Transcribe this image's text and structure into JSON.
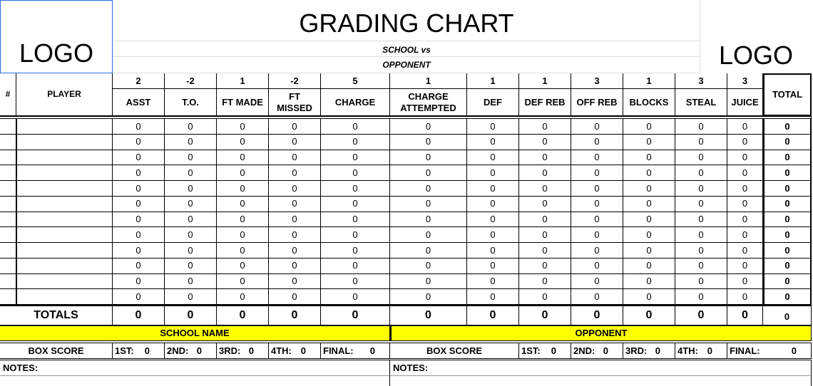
{
  "header": {
    "logo_left": "LOGO",
    "title": "GRADING CHART",
    "subtitle": [
      "SCHOOL vs",
      "OPPONENT"
    ],
    "logo_right": "LOGO"
  },
  "table": {
    "columns": {
      "number": "#",
      "player": "PLAYER",
      "total": "TOTAL",
      "stats": [
        {
          "weight": 2,
          "name": "ASST"
        },
        {
          "weight": -2,
          "name": "T.O."
        },
        {
          "weight": 1,
          "name": "FT MADE"
        },
        {
          "weight": -2,
          "name": "FT MISSED"
        },
        {
          "weight": 5,
          "name": "CHARGE"
        },
        {
          "weight": 1,
          "name": "CHARGE ATTEMPTED"
        },
        {
          "weight": 1,
          "name": "DEF"
        },
        {
          "weight": 1,
          "name": "DEF REB"
        },
        {
          "weight": 3,
          "name": "OFF REB"
        },
        {
          "weight": 1,
          "name": "BLOCKS"
        },
        {
          "weight": 3,
          "name": "STEAL"
        },
        {
          "weight": 3,
          "name": "JUICE"
        }
      ]
    },
    "rows": [
      {
        "stats": [
          0,
          0,
          0,
          0,
          0,
          0,
          0,
          0,
          0,
          0,
          0,
          0
        ],
        "total": 0
      },
      {
        "stats": [
          0,
          0,
          0,
          0,
          0,
          0,
          0,
          0,
          0,
          0,
          0,
          0
        ],
        "total": 0
      },
      {
        "stats": [
          0,
          0,
          0,
          0,
          0,
          0,
          0,
          0,
          0,
          0,
          0,
          0
        ],
        "total": 0
      },
      {
        "stats": [
          0,
          0,
          0,
          0,
          0,
          0,
          0,
          0,
          0,
          0,
          0,
          0
        ],
        "total": 0
      },
      {
        "stats": [
          0,
          0,
          0,
          0,
          0,
          0,
          0,
          0,
          0,
          0,
          0,
          0
        ],
        "total": 0
      },
      {
        "stats": [
          0,
          0,
          0,
          0,
          0,
          0,
          0,
          0,
          0,
          0,
          0,
          0
        ],
        "total": 0
      },
      {
        "stats": [
          0,
          0,
          0,
          0,
          0,
          0,
          0,
          0,
          0,
          0,
          0,
          0
        ],
        "total": 0
      },
      {
        "stats": [
          0,
          0,
          0,
          0,
          0,
          0,
          0,
          0,
          0,
          0,
          0,
          0
        ],
        "total": 0
      },
      {
        "stats": [
          0,
          0,
          0,
          0,
          0,
          0,
          0,
          0,
          0,
          0,
          0,
          0
        ],
        "total": 0
      },
      {
        "stats": [
          0,
          0,
          0,
          0,
          0,
          0,
          0,
          0,
          0,
          0,
          0,
          0
        ],
        "total": 0
      },
      {
        "stats": [
          0,
          0,
          0,
          0,
          0,
          0,
          0,
          0,
          0,
          0,
          0,
          0
        ],
        "total": 0
      },
      {
        "stats": [
          0,
          0,
          0,
          0,
          0,
          0,
          0,
          0,
          0,
          0,
          0,
          0
        ],
        "total": 0
      }
    ],
    "totals": {
      "label": "TOTALS",
      "stats": [
        0,
        0,
        0,
        0,
        0,
        0,
        0,
        0,
        0,
        0,
        0,
        0
      ],
      "total": 0
    }
  },
  "footer": {
    "school": {
      "name": "SCHOOL NAME",
      "box_label": "BOX SCORE",
      "quarters": [
        {
          "label": "1ST:",
          "value": 0
        },
        {
          "label": "2ND:",
          "value": 0
        },
        {
          "label": "3RD:",
          "value": 0
        },
        {
          "label": "4TH:",
          "value": 0
        },
        {
          "label": "FINAL:",
          "value": 0
        }
      ],
      "notes": "NOTES:"
    },
    "opponent": {
      "name": "OPPONENT",
      "box_label": "BOX SCORE",
      "quarters": [
        {
          "label": "1ST:",
          "value": 0
        },
        {
          "label": "2ND:",
          "value": 0
        },
        {
          "label": "3RD:",
          "value": 0
        },
        {
          "label": "4TH:",
          "value": 0
        },
        {
          "label": "FINAL:",
          "value": 0
        }
      ],
      "notes": "NOTES:"
    }
  }
}
